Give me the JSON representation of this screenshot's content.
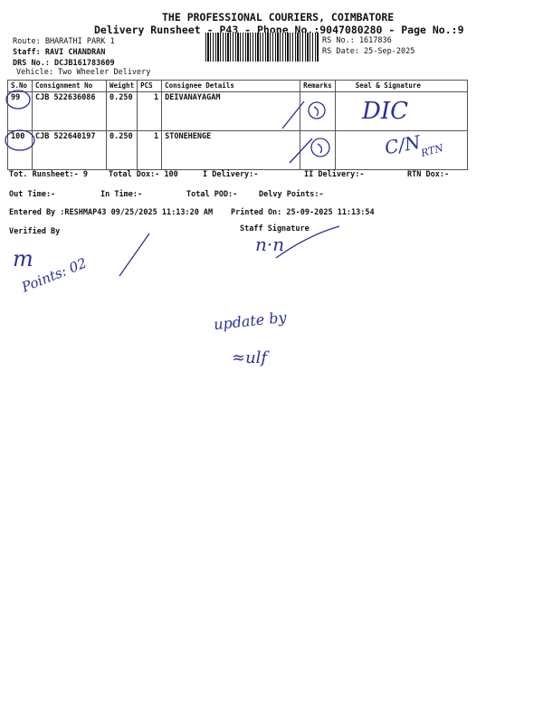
{
  "header": {
    "company": "THE PROFESSIONAL COURIERS, COIMBATORE",
    "subtitle": "Delivery Runsheet - P43 - Phone No.:9047080280 - Page No.:9",
    "route": "Route: BHARATHI PARK 1",
    "staff": "Staff: RAVI CHANDRAN",
    "drs": "DRS No.: DCJB161783609",
    "vehicle": "Vehicle: Two Wheeler Delivery",
    "rs_no": "RS No.: 1617836",
    "rs_date": "RS Date: 25-Sep-2025"
  },
  "table": {
    "columns": [
      "S.No",
      "Consignment No",
      "Weight",
      "PCS",
      "Consignee Details",
      "Remarks",
      "Seal & Signature"
    ],
    "rows": [
      {
        "sno": "99",
        "consignment": "CJB 522636086",
        "weight": "0.250",
        "pcs": "1",
        "consignee": "DEIVANAYAGAM"
      },
      {
        "sno": "100",
        "consignment": "CJB 522640197",
        "weight": "0.250",
        "pcs": "1",
        "consignee": "STONEHENGE"
      }
    ]
  },
  "summary": {
    "tot_runsheet": "Tot. Runsheet:- 9",
    "total_dox": "Total Dox:-  100",
    "i_delivery": "I Delivery:-",
    "ii_delivery": "II Delivery:-",
    "rtn_dox": "RTN Dox:-",
    "out_time": "Out Time:-",
    "in_time": "In Time:-",
    "total_pod": "Total POD:-",
    "delvy_points": "Delvy Points:-",
    "entered_by": "Entered By :RESHMAP43 09/25/2025 11:13:20 AM",
    "printed_on": "Printed On: 25-09-2025 11:13:54",
    "verified_by": "Verified By",
    "staff_signature": "Staff Signature"
  },
  "handwriting": {
    "sig1": "DIC",
    "sig2": "C/N",
    "sig2b": "RTN",
    "points": "Points: 02",
    "update": "update by"
  },
  "ink_color": "#2b2f9a"
}
